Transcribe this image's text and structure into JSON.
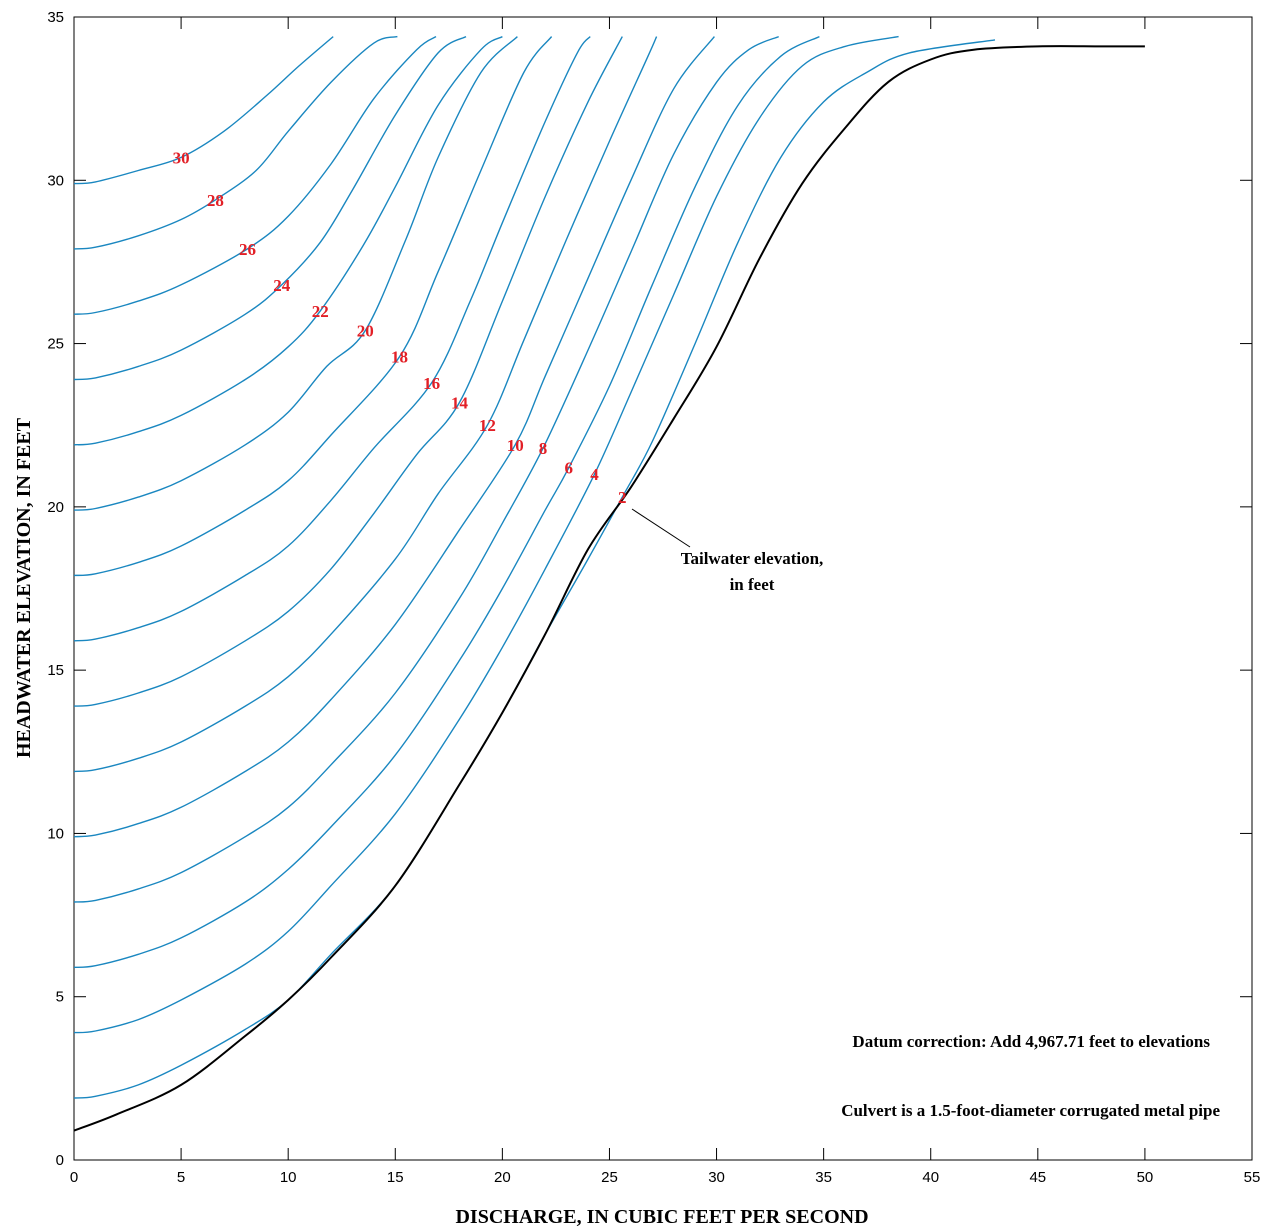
{
  "chart_data": {
    "type": "line",
    "title": "",
    "xlabel": "DISCHARGE, IN CUBIC FEET PER SECOND",
    "ylabel": "HEADWATER ELEVATION, IN FEET",
    "xlim": [
      0,
      55
    ],
    "ylim": [
      0,
      35
    ],
    "xticks": [
      0,
      5,
      10,
      15,
      20,
      25,
      30,
      35,
      40,
      45,
      50,
      55
    ],
    "yticks": [
      0,
      5,
      10,
      15,
      20,
      25,
      30,
      35
    ],
    "grid": false,
    "colors": {
      "curves": "#1a87c0",
      "labels": "#e21f26",
      "tailwater_line": "#000000"
    },
    "series": [
      {
        "label": "2",
        "points": [
          [
            0,
            1.9
          ],
          [
            1,
            1.95
          ],
          [
            3,
            2.3
          ],
          [
            5,
            2.9
          ],
          [
            8,
            4.0
          ],
          [
            10,
            4.9
          ],
          [
            12,
            6.3
          ],
          [
            15,
            8.4
          ],
          [
            18,
            11.5
          ],
          [
            20,
            13.7
          ],
          [
            22,
            16.1
          ],
          [
            24,
            18.4
          ],
          [
            25.6,
            20.3
          ],
          [
            27,
            22.0
          ],
          [
            29,
            25.0
          ],
          [
            31,
            28.1
          ],
          [
            33,
            30.7
          ],
          [
            35,
            32.4
          ],
          [
            37,
            33.3
          ],
          [
            39,
            33.9
          ],
          [
            43,
            34.3
          ]
        ]
      },
      {
        "label": "4",
        "points": [
          [
            0,
            3.9
          ],
          [
            1,
            3.95
          ],
          [
            3,
            4.3
          ],
          [
            5,
            4.9
          ],
          [
            8,
            6.0
          ],
          [
            10,
            7.0
          ],
          [
            12,
            8.4
          ],
          [
            15,
            10.6
          ],
          [
            18,
            13.5
          ],
          [
            20,
            15.7
          ],
          [
            22,
            18.1
          ],
          [
            24.3,
            21.0
          ],
          [
            26,
            23.5
          ],
          [
            28,
            26.5
          ],
          [
            30,
            29.5
          ],
          [
            32,
            31.9
          ],
          [
            34,
            33.5
          ],
          [
            36,
            34.1
          ],
          [
            38.5,
            34.4
          ]
        ]
      },
      {
        "label": "6",
        "points": [
          [
            0,
            5.9
          ],
          [
            1,
            5.95
          ],
          [
            3,
            6.3
          ],
          [
            5,
            6.8
          ],
          [
            8,
            7.9
          ],
          [
            10,
            8.9
          ],
          [
            12,
            10.2
          ],
          [
            15,
            12.4
          ],
          [
            18,
            15.3
          ],
          [
            20,
            17.5
          ],
          [
            22,
            19.9
          ],
          [
            23.1,
            21.2
          ],
          [
            25,
            23.7
          ],
          [
            27,
            26.8
          ],
          [
            29,
            29.8
          ],
          [
            31,
            32.3
          ],
          [
            33,
            33.8
          ],
          [
            34.8,
            34.4
          ]
        ]
      },
      {
        "label": "8",
        "points": [
          [
            0,
            7.9
          ],
          [
            1,
            7.95
          ],
          [
            3,
            8.3
          ],
          [
            5,
            8.8
          ],
          [
            8,
            9.9
          ],
          [
            10,
            10.8
          ],
          [
            12,
            12.1
          ],
          [
            15,
            14.3
          ],
          [
            18,
            17.2
          ],
          [
            20,
            19.5
          ],
          [
            21.9,
            21.8
          ],
          [
            24,
            24.8
          ],
          [
            26,
            27.8
          ],
          [
            28,
            30.8
          ],
          [
            30,
            33.0
          ],
          [
            31.5,
            34.0
          ],
          [
            32.9,
            34.4
          ]
        ]
      },
      {
        "label": "10",
        "points": [
          [
            0,
            9.9
          ],
          [
            1,
            9.95
          ],
          [
            3,
            10.3
          ],
          [
            5,
            10.8
          ],
          [
            8,
            11.9
          ],
          [
            10,
            12.8
          ],
          [
            12,
            14.1
          ],
          [
            15,
            16.4
          ],
          [
            18,
            19.3
          ],
          [
            20.6,
            21.9
          ],
          [
            22,
            24.0
          ],
          [
            24,
            27.0
          ],
          [
            26,
            30.0
          ],
          [
            28,
            32.8
          ],
          [
            29.9,
            34.4
          ]
        ]
      },
      {
        "label": "12",
        "points": [
          [
            0,
            11.9
          ],
          [
            1,
            11.95
          ],
          [
            3,
            12.3
          ],
          [
            5,
            12.8
          ],
          [
            8,
            13.9
          ],
          [
            10,
            14.8
          ],
          [
            12,
            16.1
          ],
          [
            15,
            18.4
          ],
          [
            17,
            20.4
          ],
          [
            19.3,
            22.5
          ],
          [
            21,
            25.1
          ],
          [
            23,
            28.2
          ],
          [
            25,
            31.2
          ],
          [
            26.8,
            33.8
          ],
          [
            27.2,
            34.4
          ]
        ]
      },
      {
        "label": "14",
        "points": [
          [
            0,
            13.9
          ],
          [
            1,
            13.95
          ],
          [
            3,
            14.3
          ],
          [
            5,
            14.8
          ],
          [
            8,
            15.9
          ],
          [
            10,
            16.8
          ],
          [
            12,
            18.1
          ],
          [
            14,
            19.8
          ],
          [
            16,
            21.6
          ],
          [
            18,
            23.2
          ],
          [
            20,
            26.3
          ],
          [
            22,
            29.5
          ],
          [
            24,
            32.4
          ],
          [
            25.6,
            34.4
          ]
        ]
      },
      {
        "label": "16",
        "points": [
          [
            0,
            15.9
          ],
          [
            1,
            15.95
          ],
          [
            3,
            16.3
          ],
          [
            5,
            16.8
          ],
          [
            8,
            17.9
          ],
          [
            10,
            18.8
          ],
          [
            12,
            20.2
          ],
          [
            14,
            21.8
          ],
          [
            16.7,
            23.8
          ],
          [
            18.5,
            26.3
          ],
          [
            20,
            28.7
          ],
          [
            22,
            31.8
          ],
          [
            23.5,
            33.9
          ],
          [
            24.1,
            34.4
          ]
        ]
      },
      {
        "label": "18",
        "points": [
          [
            0,
            17.9
          ],
          [
            1,
            17.95
          ],
          [
            3,
            18.3
          ],
          [
            5,
            18.8
          ],
          [
            8,
            19.9
          ],
          [
            10,
            20.8
          ],
          [
            12,
            22.2
          ],
          [
            15.2,
            24.6
          ],
          [
            17,
            27.2
          ],
          [
            19,
            30.3
          ],
          [
            21,
            33.3
          ],
          [
            22.3,
            34.4
          ]
        ]
      },
      {
        "label": "20",
        "points": [
          [
            0,
            19.9
          ],
          [
            1,
            19.95
          ],
          [
            3,
            20.3
          ],
          [
            5,
            20.8
          ],
          [
            8,
            21.9
          ],
          [
            10,
            22.9
          ],
          [
            11.8,
            24.3
          ],
          [
            13.6,
            25.4
          ],
          [
            15.5,
            28.2
          ],
          [
            17,
            30.7
          ],
          [
            19,
            33.3
          ],
          [
            20.7,
            34.4
          ]
        ]
      },
      {
        "label": "22",
        "points": [
          [
            0,
            21.9
          ],
          [
            1,
            21.95
          ],
          [
            3,
            22.3
          ],
          [
            5,
            22.8
          ],
          [
            8,
            23.9
          ],
          [
            10,
            24.9
          ],
          [
            11.5,
            26.0
          ],
          [
            13.5,
            28.0
          ],
          [
            15,
            29.8
          ],
          [
            17,
            32.3
          ],
          [
            19,
            34.0
          ],
          [
            20,
            34.4
          ]
        ]
      },
      {
        "label": "24",
        "points": [
          [
            0,
            23.9
          ],
          [
            1,
            23.95
          ],
          [
            3,
            24.3
          ],
          [
            5,
            24.8
          ],
          [
            8,
            25.9
          ],
          [
            9.7,
            26.8
          ],
          [
            11.5,
            28.1
          ],
          [
            13,
            29.7
          ],
          [
            15,
            32.0
          ],
          [
            17,
            33.9
          ],
          [
            18.3,
            34.4
          ]
        ]
      },
      {
        "label": "26",
        "points": [
          [
            0,
            25.9
          ],
          [
            1,
            25.95
          ],
          [
            3,
            26.3
          ],
          [
            5,
            26.8
          ],
          [
            8.1,
            27.9
          ],
          [
            10,
            28.9
          ],
          [
            12,
            30.5
          ],
          [
            14,
            32.5
          ],
          [
            16,
            34.0
          ],
          [
            16.9,
            34.4
          ]
        ]
      },
      {
        "label": "28",
        "points": [
          [
            0,
            27.9
          ],
          [
            1,
            27.95
          ],
          [
            3,
            28.3
          ],
          [
            5,
            28.8
          ],
          [
            6.6,
            29.4
          ],
          [
            8.5,
            30.3
          ],
          [
            10,
            31.5
          ],
          [
            12,
            33.0
          ],
          [
            14,
            34.2
          ],
          [
            15.1,
            34.4
          ]
        ]
      },
      {
        "label": "30",
        "points": [
          [
            0,
            29.9
          ],
          [
            1,
            29.95
          ],
          [
            3,
            30.3
          ],
          [
            5,
            30.7
          ],
          [
            7,
            31.5
          ],
          [
            9,
            32.6
          ],
          [
            10.5,
            33.5
          ],
          [
            12.1,
            34.4
          ]
        ]
      }
    ],
    "tailwater": [
      [
        0,
        0.9
      ],
      [
        2,
        1.4
      ],
      [
        5,
        2.3
      ],
      [
        8,
        3.8
      ],
      [
        10,
        4.9
      ],
      [
        12,
        6.2
      ],
      [
        15,
        8.4
      ],
      [
        18,
        11.5
      ],
      [
        20,
        13.7
      ],
      [
        22,
        16.1
      ],
      [
        24,
        18.7
      ],
      [
        26,
        20.6
      ],
      [
        28,
        22.7
      ],
      [
        30,
        24.9
      ],
      [
        32,
        27.6
      ],
      [
        34,
        29.9
      ],
      [
        36,
        31.6
      ],
      [
        38,
        33.0
      ],
      [
        40,
        33.7
      ],
      [
        42,
        34.0
      ],
      [
        45,
        34.1
      ],
      [
        48,
        34.1
      ],
      [
        50,
        34.1
      ]
    ],
    "annotations": {
      "tailwater_label": [
        "Tailwater elevation,",
        "in feet"
      ],
      "datum": "Datum correction: Add 4,967.71 feet to elevations",
      "culvert": "Culvert is a 1.5-foot-diameter corrugated metal pipe"
    }
  }
}
